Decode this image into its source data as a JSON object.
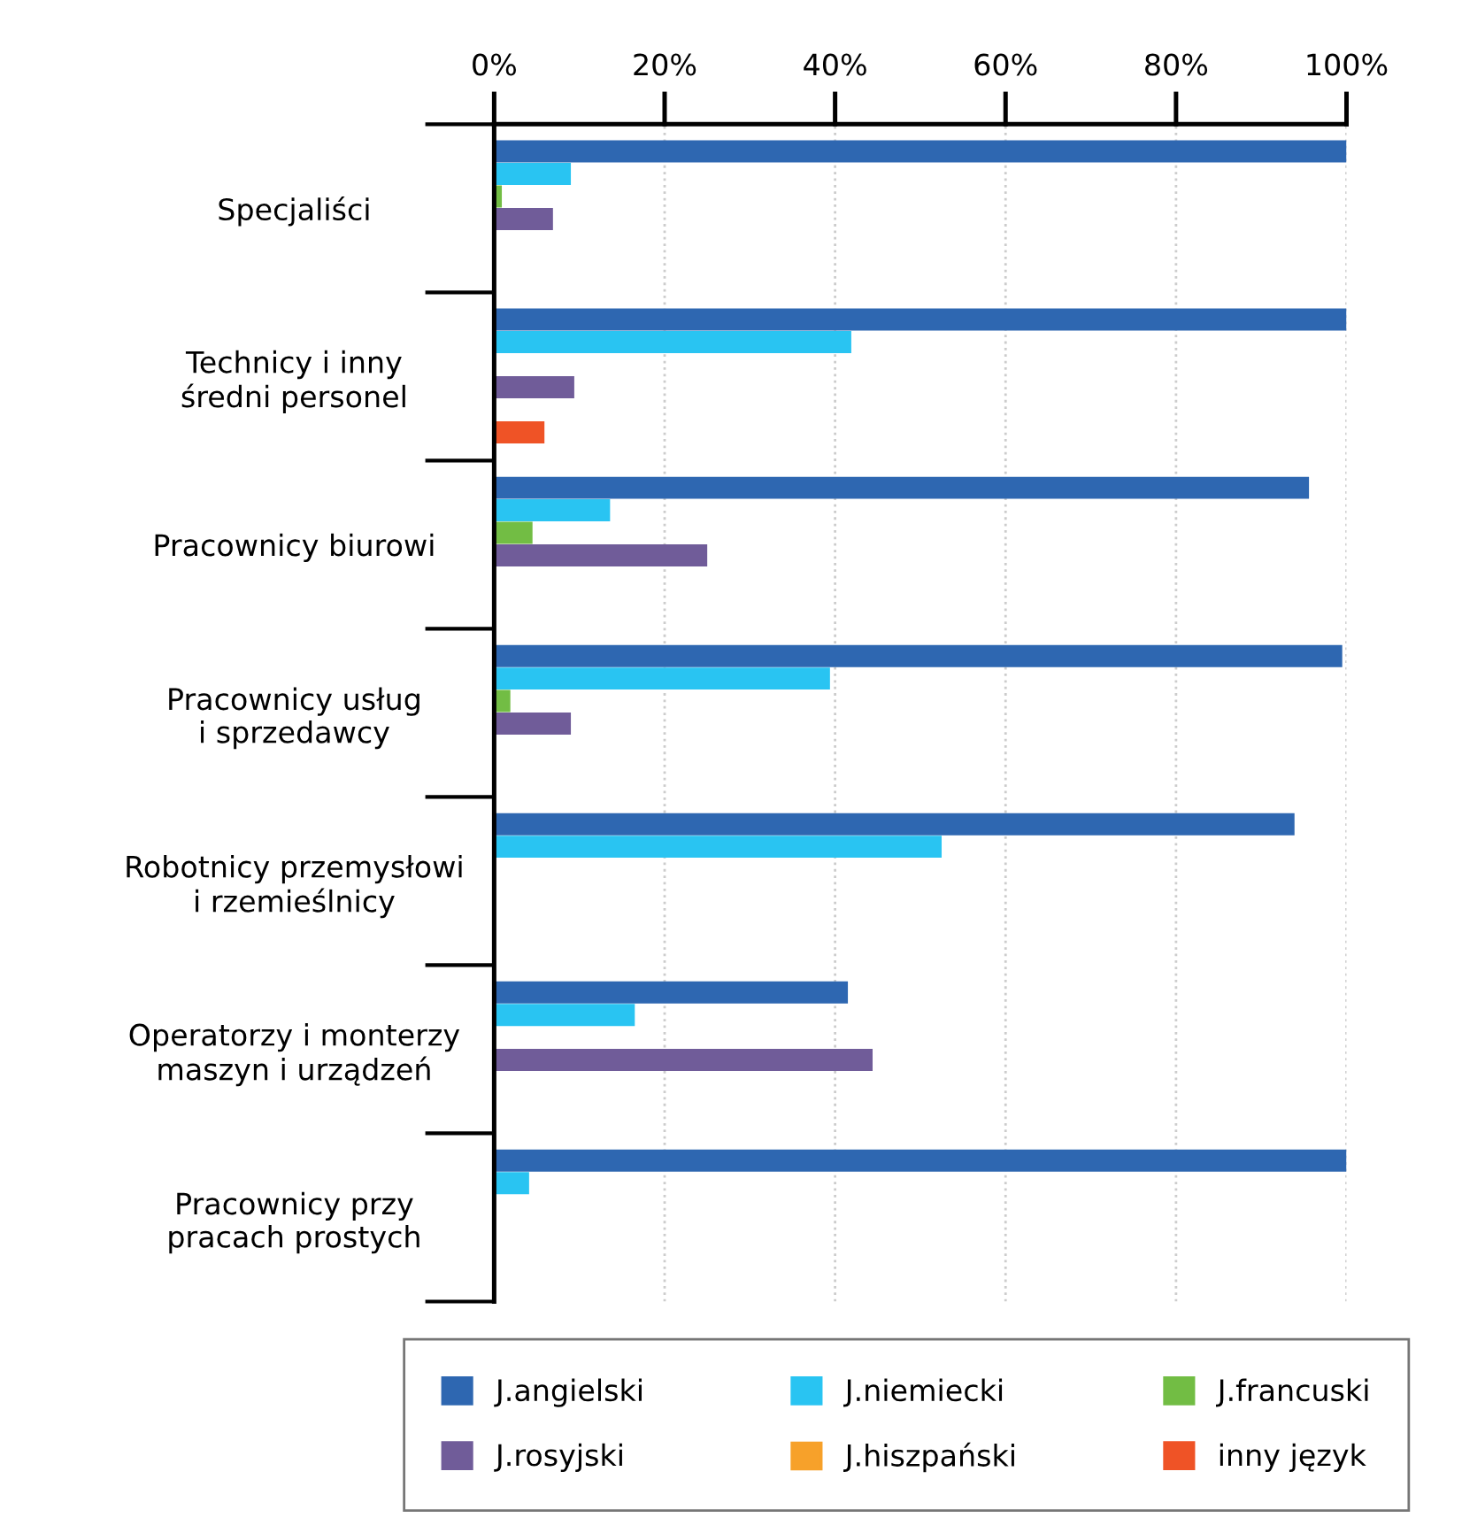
{
  "chart_data": {
    "type": "bar",
    "orientation": "horizontal",
    "categories": [
      "Specjaliści",
      "Technicy i inny\nśredni personel",
      "Pracownicy biurowi",
      "Pracownicy usług\ni sprzedawcy",
      "Robotnicy przemysłowi\ni rzemieślnicy",
      "Operatorzy i monterzy\nmaszyn i urządzeń",
      "Pracownicy przy\npracach prostych"
    ],
    "series": [
      {
        "name": "J.angielski",
        "color": "#2e67b1",
        "values": [
          100,
          100,
          95.6,
          99.5,
          93.9,
          41.5,
          100
        ]
      },
      {
        "name": "J.niemiecki",
        "color": "#29c4f2",
        "values": [
          9.0,
          41.9,
          13.6,
          39.4,
          52.5,
          16.5,
          4.1
        ]
      },
      {
        "name": "J.francuski",
        "color": "#72bd44",
        "values": [
          0.9,
          null,
          4.5,
          1.9,
          null,
          null,
          null
        ]
      },
      {
        "name": "J.rosyjski",
        "color": "#705c99",
        "values": [
          6.9,
          9.4,
          25.0,
          9.0,
          null,
          44.4,
          null
        ]
      },
      {
        "name": "J.hiszpański",
        "color": "#f7a12a",
        "values": [
          null,
          null,
          null,
          null,
          null,
          null,
          null
        ]
      },
      {
        "name": "inny język",
        "color": "#ef5326",
        "values": [
          null,
          5.9,
          null,
          null,
          null,
          null,
          null
        ]
      }
    ],
    "xlim": [
      0,
      100
    ],
    "xticks": [
      {
        "value": 0,
        "label": "0%"
      },
      {
        "value": 20,
        "label": "20%"
      },
      {
        "value": 40,
        "label": "40%"
      },
      {
        "value": 60,
        "label": "60%"
      },
      {
        "value": 80,
        "label": "80%"
      },
      {
        "value": 100,
        "label": "100%"
      }
    ],
    "grid": "x",
    "legend": "bottom"
  }
}
